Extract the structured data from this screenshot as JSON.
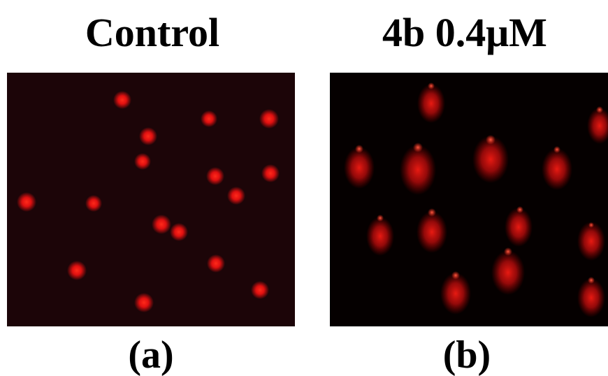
{
  "panels": [
    {
      "title": "Control",
      "label": "(a)"
    },
    {
      "title": "4b 0.4μM",
      "label": "(b)"
    }
  ]
}
